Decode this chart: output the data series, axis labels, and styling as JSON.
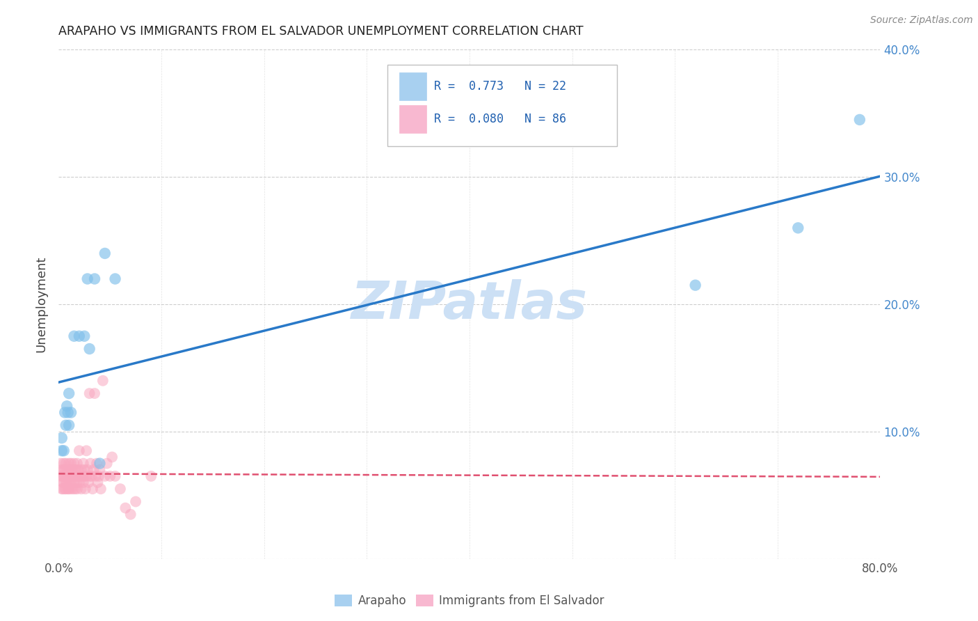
{
  "title": "ARAPAHO VS IMMIGRANTS FROM EL SALVADOR UNEMPLOYMENT CORRELATION CHART",
  "source": "Source: ZipAtlas.com",
  "ylabel_label": "Unemployment",
  "xlim": [
    0.0,
    0.8
  ],
  "ylim": [
    -0.02,
    0.42
  ],
  "plot_ylim": [
    0.0,
    0.4
  ],
  "arapaho_scatter": [
    [
      0.003,
      0.085
    ],
    [
      0.003,
      0.095
    ],
    [
      0.005,
      0.085
    ],
    [
      0.006,
      0.115
    ],
    [
      0.007,
      0.105
    ],
    [
      0.008,
      0.12
    ],
    [
      0.009,
      0.115
    ],
    [
      0.01,
      0.105
    ],
    [
      0.01,
      0.13
    ],
    [
      0.012,
      0.115
    ],
    [
      0.015,
      0.175
    ],
    [
      0.02,
      0.175
    ],
    [
      0.025,
      0.175
    ],
    [
      0.028,
      0.22
    ],
    [
      0.03,
      0.165
    ],
    [
      0.035,
      0.22
    ],
    [
      0.04,
      0.075
    ],
    [
      0.045,
      0.24
    ],
    [
      0.055,
      0.22
    ],
    [
      0.62,
      0.215
    ],
    [
      0.72,
      0.26
    ],
    [
      0.78,
      0.345
    ]
  ],
  "salvador_scatter": [
    [
      0.002,
      0.065
    ],
    [
      0.002,
      0.075
    ],
    [
      0.003,
      0.055
    ],
    [
      0.003,
      0.07
    ],
    [
      0.004,
      0.065
    ],
    [
      0.004,
      0.06
    ],
    [
      0.004,
      0.055
    ],
    [
      0.005,
      0.07
    ],
    [
      0.005,
      0.065
    ],
    [
      0.005,
      0.06
    ],
    [
      0.005,
      0.075
    ],
    [
      0.006,
      0.055
    ],
    [
      0.006,
      0.07
    ],
    [
      0.006,
      0.065
    ],
    [
      0.007,
      0.06
    ],
    [
      0.007,
      0.075
    ],
    [
      0.007,
      0.055
    ],
    [
      0.008,
      0.065
    ],
    [
      0.008,
      0.07
    ],
    [
      0.008,
      0.06
    ],
    [
      0.009,
      0.055
    ],
    [
      0.009,
      0.07
    ],
    [
      0.009,
      0.065
    ],
    [
      0.01,
      0.06
    ],
    [
      0.01,
      0.075
    ],
    [
      0.01,
      0.055
    ],
    [
      0.011,
      0.065
    ],
    [
      0.011,
      0.07
    ],
    [
      0.012,
      0.06
    ],
    [
      0.012,
      0.055
    ],
    [
      0.012,
      0.075
    ],
    [
      0.013,
      0.065
    ],
    [
      0.013,
      0.07
    ],
    [
      0.014,
      0.055
    ],
    [
      0.014,
      0.065
    ],
    [
      0.015,
      0.07
    ],
    [
      0.015,
      0.06
    ],
    [
      0.015,
      0.075
    ],
    [
      0.016,
      0.065
    ],
    [
      0.016,
      0.055
    ],
    [
      0.017,
      0.07
    ],
    [
      0.017,
      0.065
    ],
    [
      0.018,
      0.06
    ],
    [
      0.018,
      0.075
    ],
    [
      0.018,
      0.055
    ],
    [
      0.019,
      0.065
    ],
    [
      0.019,
      0.07
    ],
    [
      0.02,
      0.06
    ],
    [
      0.02,
      0.085
    ],
    [
      0.021,
      0.065
    ],
    [
      0.022,
      0.07
    ],
    [
      0.022,
      0.055
    ],
    [
      0.023,
      0.065
    ],
    [
      0.024,
      0.075
    ],
    [
      0.024,
      0.06
    ],
    [
      0.025,
      0.065
    ],
    [
      0.025,
      0.07
    ],
    [
      0.026,
      0.055
    ],
    [
      0.027,
      0.065
    ],
    [
      0.027,
      0.085
    ],
    [
      0.028,
      0.07
    ],
    [
      0.029,
      0.06
    ],
    [
      0.03,
      0.065
    ],
    [
      0.03,
      0.13
    ],
    [
      0.031,
      0.075
    ],
    [
      0.032,
      0.065
    ],
    [
      0.033,
      0.055
    ],
    [
      0.034,
      0.07
    ],
    [
      0.035,
      0.13
    ],
    [
      0.036,
      0.065
    ],
    [
      0.037,
      0.075
    ],
    [
      0.038,
      0.06
    ],
    [
      0.039,
      0.065
    ],
    [
      0.04,
      0.07
    ],
    [
      0.041,
      0.055
    ],
    [
      0.043,
      0.14
    ],
    [
      0.045,
      0.065
    ],
    [
      0.047,
      0.075
    ],
    [
      0.05,
      0.065
    ],
    [
      0.052,
      0.08
    ],
    [
      0.055,
      0.065
    ],
    [
      0.06,
      0.055
    ],
    [
      0.065,
      0.04
    ],
    [
      0.07,
      0.035
    ],
    [
      0.075,
      0.045
    ],
    [
      0.09,
      0.065
    ]
  ],
  "arapaho_color": "#7fbfea",
  "arapaho_edge_color": "#7fbfea",
  "salvador_color": "#f9a8c0",
  "salvador_edge_color": "#f9a8c0",
  "arapaho_line_color": "#2979c8",
  "salvador_line_color": "#e05070",
  "watermark": "ZIPatlas",
  "watermark_color": "#cce0f5",
  "background_color": "#ffffff",
  "grid_color": "#c8c8c8",
  "ytick_color": "#4488cc",
  "xtick_color": "#555555",
  "legend_r1": "R =  0.773   N = 22",
  "legend_r2": "R =  0.080   N = 86",
  "legend_color1": "#a8d0f0",
  "legend_color2": "#f8b8d0",
  "legend_text_color": "#2060b0"
}
